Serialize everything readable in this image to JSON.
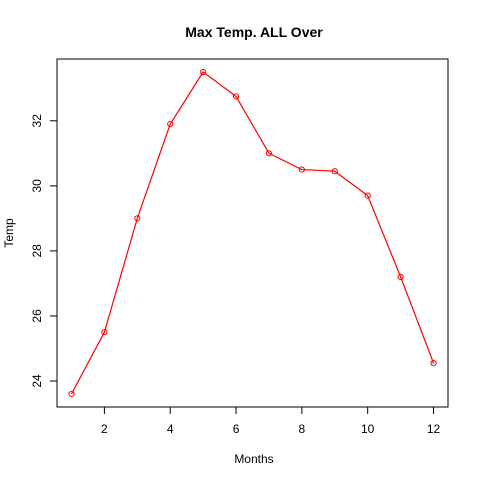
{
  "chart_data": {
    "type": "line",
    "title": "Max Temp. ALL Over",
    "xlabel": "Months",
    "ylabel": "Temp",
    "xlim": [
      0.56,
      12.44
    ],
    "ylim": [
      23.2,
      33.9
    ],
    "x_ticks": [
      2,
      4,
      6,
      8,
      10,
      12
    ],
    "y_ticks": [
      24,
      26,
      28,
      30,
      32
    ],
    "grid": false,
    "series": [
      {
        "color": "#ff0000",
        "marker": "open-circle",
        "x": [
          1,
          2,
          3,
          4,
          5,
          6,
          7,
          8,
          9,
          10,
          11,
          12
        ],
        "y": [
          23.6,
          25.5,
          29.0,
          31.9,
          33.5,
          32.75,
          31.0,
          30.5,
          30.45,
          29.7,
          27.2,
          24.55
        ]
      }
    ]
  }
}
